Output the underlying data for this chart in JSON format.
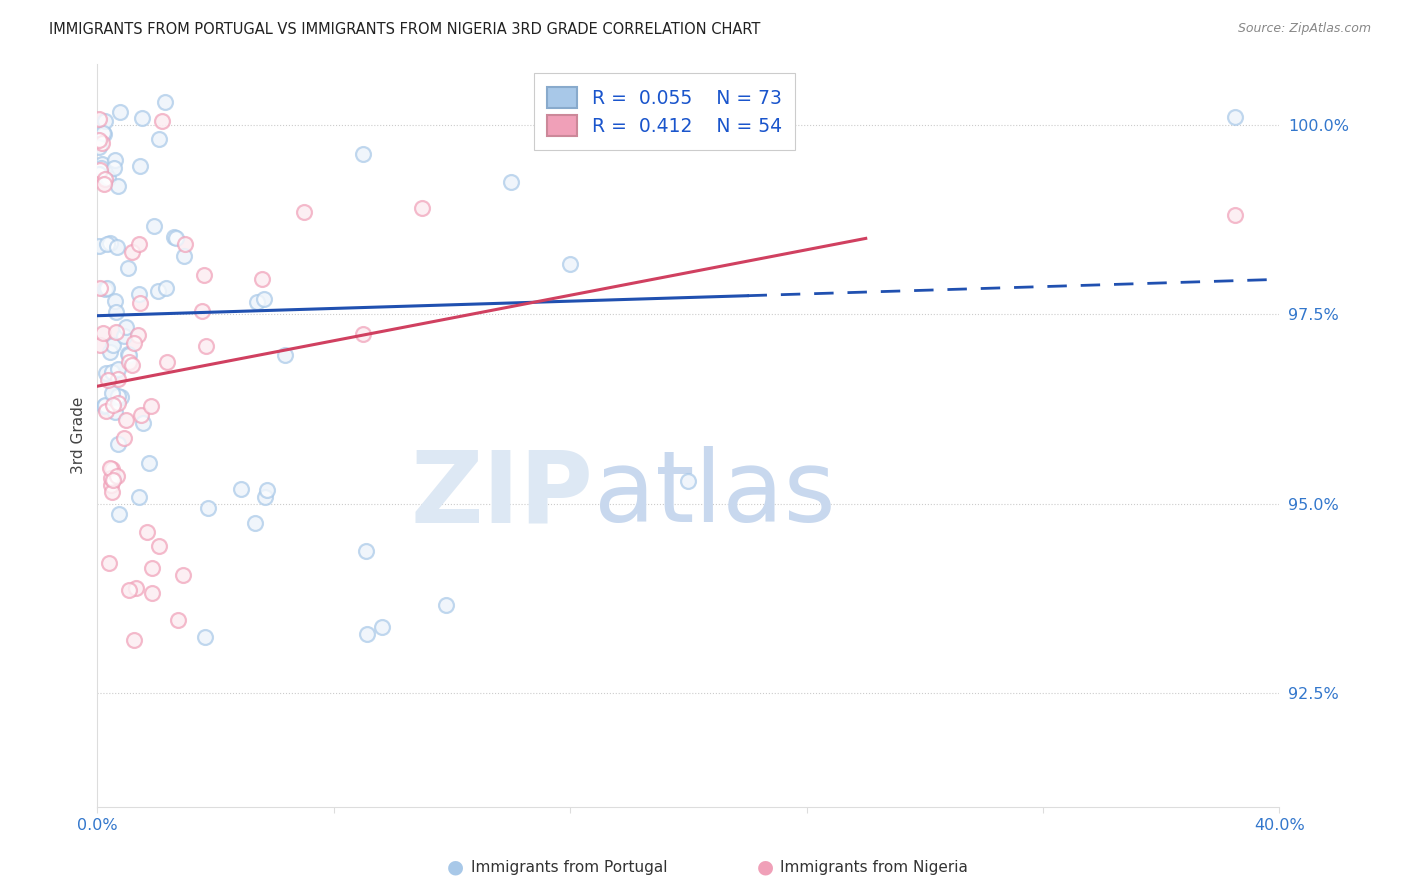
{
  "title": "IMMIGRANTS FROM PORTUGAL VS IMMIGRANTS FROM NIGERIA 3RD GRADE CORRELATION CHART",
  "source_text": "Source: ZipAtlas.com",
  "ylabel": "3rd Grade",
  "ytick_values": [
    92.5,
    95.0,
    97.5,
    100.0
  ],
  "xmin": 0.0,
  "xmax": 40.0,
  "ymin": 91.0,
  "ymax": 100.8,
  "color_portugal": "#a8c8e8",
  "color_nigeria": "#f0a0b8",
  "trendline_portugal": "#2050b0",
  "trendline_nigeria": "#d04060",
  "watermark_zip": "ZIP",
  "watermark_atlas": "atlas",
  "portugal_slope": 0.012,
  "portugal_intercept": 97.48,
  "nigeria_slope": 0.075,
  "nigeria_intercept": 96.55,
  "portugal_solid_end": 22.0,
  "nigeria_line_end": 26.0
}
